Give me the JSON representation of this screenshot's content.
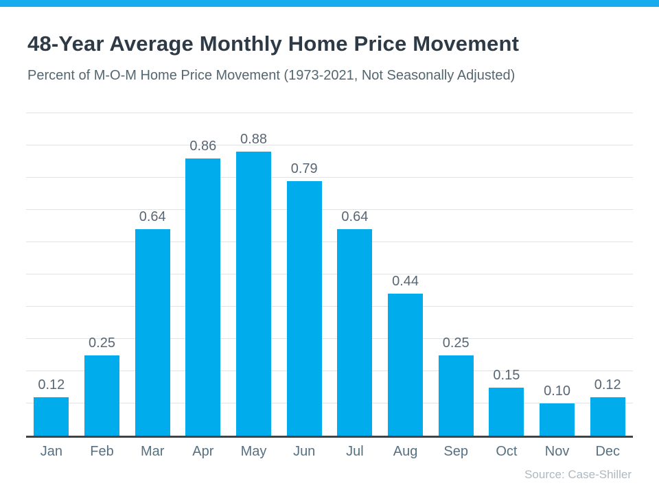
{
  "page": {
    "title": "48-Year Average Monthly Home Price Movement",
    "subtitle": "Percent of M-O-M Home Price Movement (1973-2021, Not Seasonally Adjusted)",
    "source": "Source: Case-Shiller",
    "accent_color": "#18ACEE"
  },
  "chart_data": {
    "type": "bar",
    "title": "48-Year Average Monthly Home Price Movement",
    "subtitle": "Percent of M-O-M Home Price Movement (1973-2021, Not Seasonally Adjusted)",
    "categories": [
      "Jan",
      "Feb",
      "Mar",
      "Apr",
      "May",
      "Jun",
      "Jul",
      "Aug",
      "Sep",
      "Oct",
      "Nov",
      "Dec"
    ],
    "values": [
      0.12,
      0.25,
      0.64,
      0.86,
      0.88,
      0.79,
      0.64,
      0.44,
      0.25,
      0.15,
      0.1,
      0.12
    ],
    "value_labels": [
      "0.12",
      "0.25",
      "0.64",
      "0.86",
      "0.88",
      "0.79",
      "0.64",
      "0.44",
      "0.25",
      "0.15",
      "0.10",
      "0.12"
    ],
    "xlabel": "",
    "ylabel": "",
    "ylim": [
      0,
      1.0
    ],
    "gridline_interval": 0.1,
    "grid": true,
    "legend": false,
    "yaxis_tick_labels_visible": false,
    "bar_color": "#00ACEC",
    "source": "Source: Case-Shiller"
  }
}
